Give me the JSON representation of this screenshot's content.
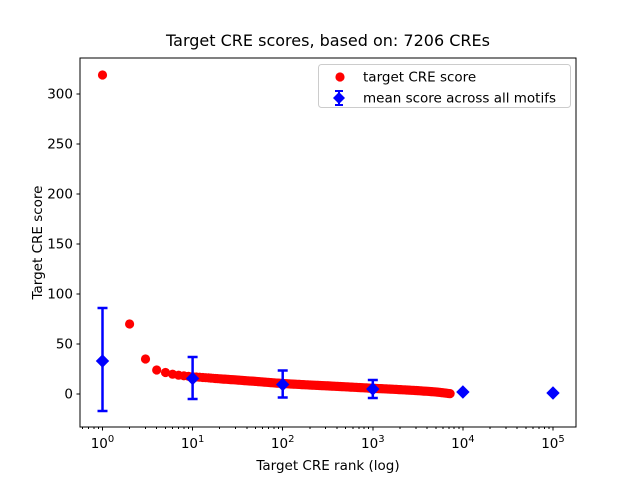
{
  "chart_data": {
    "type": "scatter",
    "title": "Target CRE scores, based on: 7206 CREs",
    "xlabel": "Target CRE rank (log)",
    "ylabel": "Target CRE score",
    "x_scale": "log",
    "xlim_log10": [
      -0.25,
      5.25
    ],
    "ylim": [
      -33,
      336
    ],
    "grid": false,
    "x_ticks": [
      {
        "value": 1,
        "base": "10",
        "exp": "0"
      },
      {
        "value": 10,
        "base": "10",
        "exp": "1"
      },
      {
        "value": 100,
        "base": "10",
        "exp": "2"
      },
      {
        "value": 1000,
        "base": "10",
        "exp": "3"
      },
      {
        "value": 10000,
        "base": "10",
        "exp": "4"
      },
      {
        "value": 100000,
        "base": "10",
        "exp": "5"
      }
    ],
    "y_ticks": [
      0,
      50,
      100,
      150,
      200,
      250,
      300
    ],
    "n_cres": 7206,
    "legend": {
      "position": "upper right",
      "border_color": "#cccccc",
      "background": "#ffffff"
    },
    "series": [
      {
        "name": "target CRE score",
        "color": "#ff0000",
        "marker": "circle",
        "n_points": 7206,
        "anchors": [
          [
            1,
            319
          ],
          [
            2,
            70
          ],
          [
            3,
            35
          ],
          [
            4,
            24
          ],
          [
            5,
            21.5
          ],
          [
            6,
            19.8
          ],
          [
            7,
            18.8
          ],
          [
            8,
            18.2
          ],
          [
            10,
            17.3
          ],
          [
            15,
            16.1
          ],
          [
            20,
            15.2
          ],
          [
            30,
            14.1
          ],
          [
            50,
            12.6
          ],
          [
            70,
            11.6
          ],
          [
            100,
            10.5
          ],
          [
            150,
            9.6
          ],
          [
            200,
            9.0
          ],
          [
            300,
            8.2
          ],
          [
            500,
            7.2
          ],
          [
            700,
            6.5
          ],
          [
            1000,
            5.7
          ],
          [
            1500,
            5.0
          ],
          [
            2000,
            4.4
          ],
          [
            3000,
            3.5
          ],
          [
            5000,
            2.1
          ],
          [
            7206,
            0.4
          ]
        ]
      },
      {
        "name": "mean score across all motifs",
        "color": "#0000ff",
        "marker": "diamond",
        "points": [
          {
            "x": 1,
            "y": 33,
            "err_low": -17,
            "err_high": 86
          },
          {
            "x": 10,
            "y": 15.5,
            "err_low": -5,
            "err_high": 37
          },
          {
            "x": 100,
            "y": 9.5,
            "err_low": -3.5,
            "err_high": 23.5
          },
          {
            "x": 1000,
            "y": 5,
            "err_low": -4,
            "err_high": 14
          },
          {
            "x": 10000,
            "y": 2,
            "err_low": 2,
            "err_high": 2
          },
          {
            "x": 100000,
            "y": 1,
            "err_low": 1,
            "err_high": 1
          }
        ]
      }
    ]
  }
}
